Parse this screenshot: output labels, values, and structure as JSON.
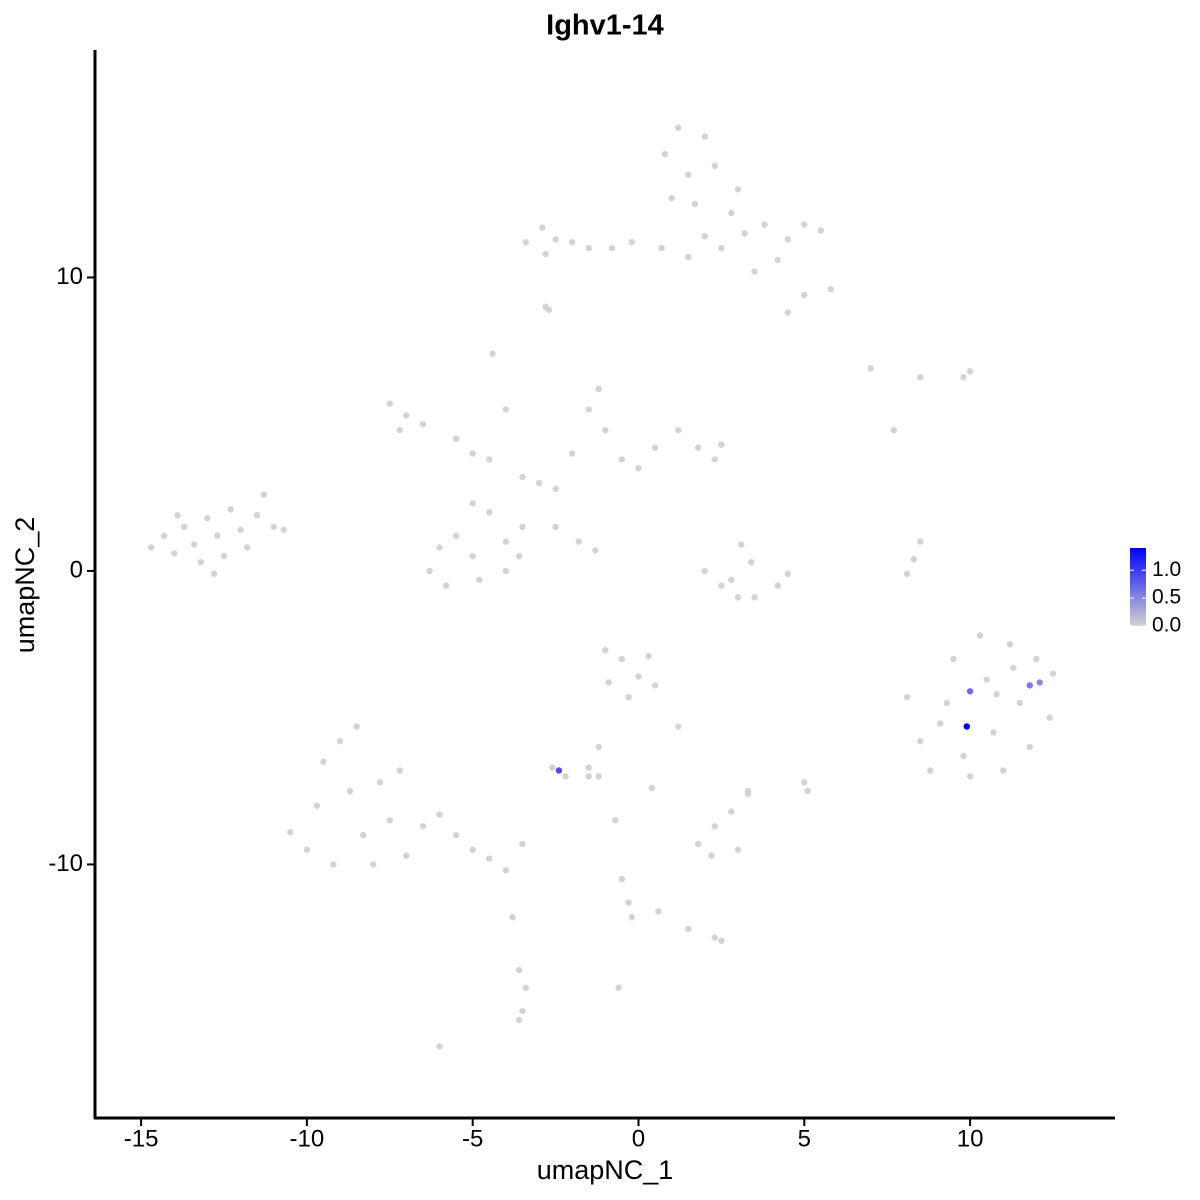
{
  "chart_data": {
    "type": "scatter",
    "title": "Ighv1-14",
    "x_label": "umapNC_1",
    "y_label": "umapNC_2",
    "x": [
      -14.7,
      -14.3,
      -14,
      -13.7,
      -13.4,
      -13.2,
      -13,
      -12.7,
      -12.5,
      -12.3,
      -12,
      -11.8,
      -11.5,
      -11.3,
      -11,
      -10.7,
      -12.8,
      -13.9,
      -3.4,
      -2.9,
      -2.5,
      -2.8,
      -2,
      -1.5,
      -0.8,
      -0.2,
      0.7,
      0.8,
      1.2,
      1.5,
      2,
      2.3,
      1.7,
      1,
      2.8,
      3.2,
      3.8,
      4.5,
      5,
      5.5,
      5.8,
      5,
      4.5,
      3.5,
      2,
      1.5,
      3,
      -2.7,
      2.5,
      4.2,
      -7.5,
      -7,
      -6.5,
      -7.2,
      -5.5,
      -5,
      -4.5,
      -4.4,
      -4,
      -3.5,
      -3,
      -2.5,
      -2,
      -1.5,
      -1.2,
      -1,
      -0.5,
      0,
      0.5,
      1.2,
      1.8,
      2.3,
      2.5,
      -3.5,
      -4,
      -4.5,
      -5,
      -5.5,
      -6,
      -6.3,
      -5.8,
      -4.8,
      -4,
      -3.6,
      -2.5,
      -1.8,
      -1.3,
      -5,
      2,
      2.5,
      3,
      3.5,
      4.2,
      4.5,
      3.1,
      3.4,
      2.8,
      8.1,
      8.3,
      8.5,
      7,
      8.5,
      9.8,
      10,
      7.7,
      -2.8,
      8.1,
      8.5,
      8.8,
      9.3,
      9.5,
      9.8,
      10.3,
      10.5,
      10.7,
      11,
      11.2,
      11.5,
      11.8,
      12,
      12.5,
      12.4,
      10,
      11.3,
      9.1,
      10.8,
      -1,
      -0.5,
      0,
      0.5,
      1.2,
      -0.9,
      -0.3,
      0.3,
      -1.2,
      -1.5,
      -2.6,
      -2.2,
      -1.2,
      -10.5,
      -10,
      -9.7,
      -9.5,
      -9,
      -8.5,
      -8.7,
      -8.3,
      -8,
      -7.5,
      -7.2,
      -7,
      -6.5,
      -6,
      -5.5,
      -5,
      -4.5,
      -4,
      -9.2,
      -7.8,
      1.8,
      2.3,
      2.8,
      3,
      2.2,
      3.3,
      5,
      5.1,
      3.3,
      0.4,
      -1.5,
      -0.7,
      -0.5,
      -0.3,
      -0.2,
      1.5,
      2.3,
      2.5,
      0.6,
      -3.8,
      -3.6,
      -3.4,
      -3.5,
      -3.6,
      -6,
      -0.6,
      -3.5,
      -2.4,
      10,
      12.1,
      11.8,
      9.9
    ],
    "y": [
      0.8,
      1.2,
      0.6,
      1.5,
      0.9,
      0.3,
      1.8,
      1.2,
      0.5,
      2.1,
      1.4,
      0.8,
      1.9,
      2.6,
      1.5,
      1.4,
      -0.1,
      1.9,
      11.2,
      11.7,
      11.3,
      10.8,
      11.2,
      11,
      11,
      11.2,
      11,
      14.2,
      15.1,
      13.5,
      14.8,
      13.8,
      12.5,
      12.7,
      12.2,
      11.5,
      11.8,
      11.3,
      11.8,
      11.6,
      9.6,
      9.4,
      8.8,
      10.2,
      11.4,
      10.7,
      13,
      8.9,
      11.0,
      10.6,
      5.7,
      5.3,
      5,
      4.8,
      4.5,
      4,
      3.8,
      7.4,
      5.5,
      3.2,
      3,
      2.8,
      4,
      5.5,
      6.2,
      4.8,
      3.8,
      3.5,
      4.2,
      4.8,
      4.2,
      3.8,
      4.3,
      1.5,
      1,
      2,
      0.5,
      1.2,
      0.8,
      0,
      -0.5,
      -0.3,
      0,
      0.5,
      1.5,
      1,
      0.7,
      2.3,
      0,
      -0.5,
      -0.9,
      -0.9,
      -0.5,
      -0.1,
      0.9,
      0.3,
      -0.3,
      -0.1,
      0.4,
      1.0,
      6.9,
      6.6,
      6.6,
      6.8,
      4.8,
      9.0,
      -4.3,
      -5.8,
      -6.8,
      -4.5,
      -3,
      -6.3,
      -2.2,
      -3.7,
      -5.5,
      -6.8,
      -2.5,
      -4.5,
      -6,
      -3,
      -3.5,
      -5,
      -7,
      -3.3,
      -5.2,
      -4.2,
      -2.7,
      -3,
      -3.6,
      -3.9,
      -5.3,
      -3.8,
      -4.3,
      -2.9,
      -6,
      -6.7,
      -6.7,
      -7,
      -7.0,
      -8.9,
      -9.5,
      -8,
      -6.5,
      -5.8,
      -5.3,
      -7.5,
      -9,
      -10,
      -8.5,
      -6.8,
      -9.7,
      -8.7,
      -8.3,
      -9,
      -9.5,
      -9.8,
      -10.2,
      -10,
      -7.2,
      -9.3,
      -8.7,
      -8.2,
      -9.5,
      -9.7,
      -7.6,
      -7.2,
      -7.5,
      -7.5,
      -7.4,
      -7.0,
      -8.5,
      -10.5,
      -11.3,
      -11.8,
      -12.2,
      -12.5,
      -12.6,
      -11.6,
      -11.8,
      -13.6,
      -14.2,
      -15,
      -15.3,
      -16.2,
      -14.2,
      -9.3,
      -6.8,
      -4.1,
      -3.8,
      -3.9,
      -5.3
    ],
    "values": [
      0,
      0,
      0,
      0,
      0,
      0,
      0,
      0,
      0,
      0,
      0,
      0,
      0,
      0,
      0,
      0,
      0,
      0,
      0,
      0,
      0,
      0,
      0,
      0,
      0,
      0,
      0,
      0,
      0,
      0,
      0,
      0,
      0,
      0,
      0,
      0,
      0,
      0,
      0,
      0,
      0,
      0,
      0,
      0,
      0,
      0,
      0,
      0,
      0,
      0,
      0,
      0,
      0,
      0,
      0,
      0,
      0,
      0,
      0,
      0,
      0,
      0,
      0,
      0,
      0,
      0,
      0,
      0,
      0,
      0,
      0,
      0,
      0,
      0,
      0,
      0,
      0,
      0,
      0,
      0,
      0,
      0,
      0,
      0,
      0,
      0,
      0,
      0,
      0,
      0,
      0,
      0,
      0,
      0,
      0,
      0,
      0,
      0,
      0,
      0,
      0,
      0,
      0,
      0,
      0,
      0,
      0,
      0,
      0,
      0,
      0,
      0,
      0,
      0,
      0,
      0,
      0,
      0,
      0,
      0,
      0,
      0,
      0,
      0,
      0,
      0,
      0,
      0,
      0,
      0,
      0,
      0,
      0,
      0,
      0,
      0,
      0,
      0,
      0,
      0,
      0,
      0,
      0,
      0,
      0,
      0,
      0,
      0,
      0,
      0,
      0,
      0,
      0,
      0,
      0,
      0,
      0,
      0,
      0,
      0,
      0,
      0,
      0,
      0,
      0,
      0,
      0,
      0,
      0,
      0,
      0,
      0,
      0,
      0,
      0,
      0,
      0,
      0,
      0,
      0,
      0,
      0,
      0,
      0,
      0,
      0,
      0.9,
      0.7,
      0.5,
      0.6,
      1.4
    ],
    "low_color": "#d3d3d3",
    "high_color": "#0000ff",
    "color_lim": [
      0,
      1.4
    ],
    "color_ticks": [
      {
        "value": 0,
        "label": "0.0"
      },
      {
        "value": 0.5,
        "label": "0.5"
      },
      {
        "value": 1,
        "label": "1.0"
      }
    ],
    "xlim": [
      -16.39,
      14.37
    ],
    "ylim": [
      -18.64,
      17.75
    ],
    "xticks": [
      -15,
      -10,
      -5,
      0,
      5,
      10
    ],
    "yticks": [
      -10,
      0,
      10
    ],
    "grid": false
  }
}
